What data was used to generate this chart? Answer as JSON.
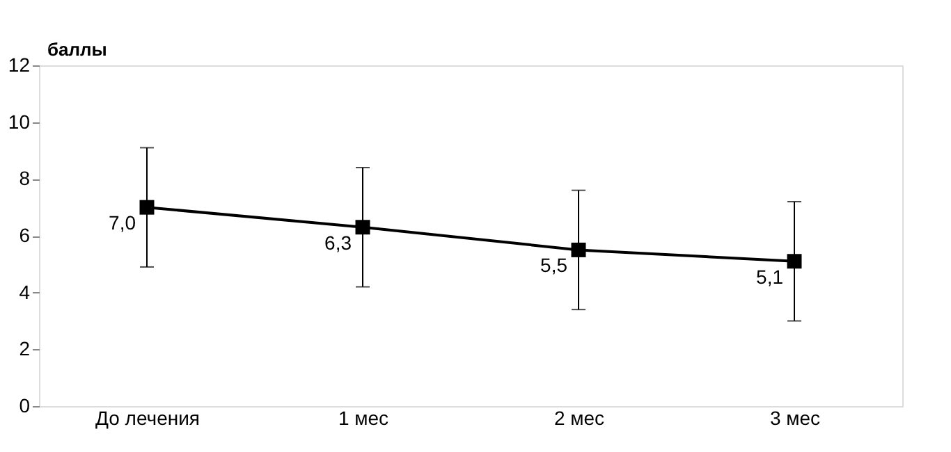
{
  "chart_data": {
    "type": "line",
    "ylabel": "баллы",
    "categories": [
      "До лечения",
      "1 мес",
      "2 мес",
      "3 мес"
    ],
    "series": [
      {
        "color": "#000000",
        "values": [
          7.0,
          6.3,
          5.5,
          5.1
        ],
        "errors": [
          2.1,
          2.1,
          2.1,
          2.1
        ],
        "value_labels": [
          "7,0",
          "6,3",
          "5,5",
          "5,1"
        ]
      }
    ],
    "ylim": [
      0,
      12
    ],
    "yticks": [
      0,
      2,
      4,
      6,
      8,
      10,
      12
    ],
    "grid": false,
    "marker": "square",
    "line_style": "solid"
  }
}
